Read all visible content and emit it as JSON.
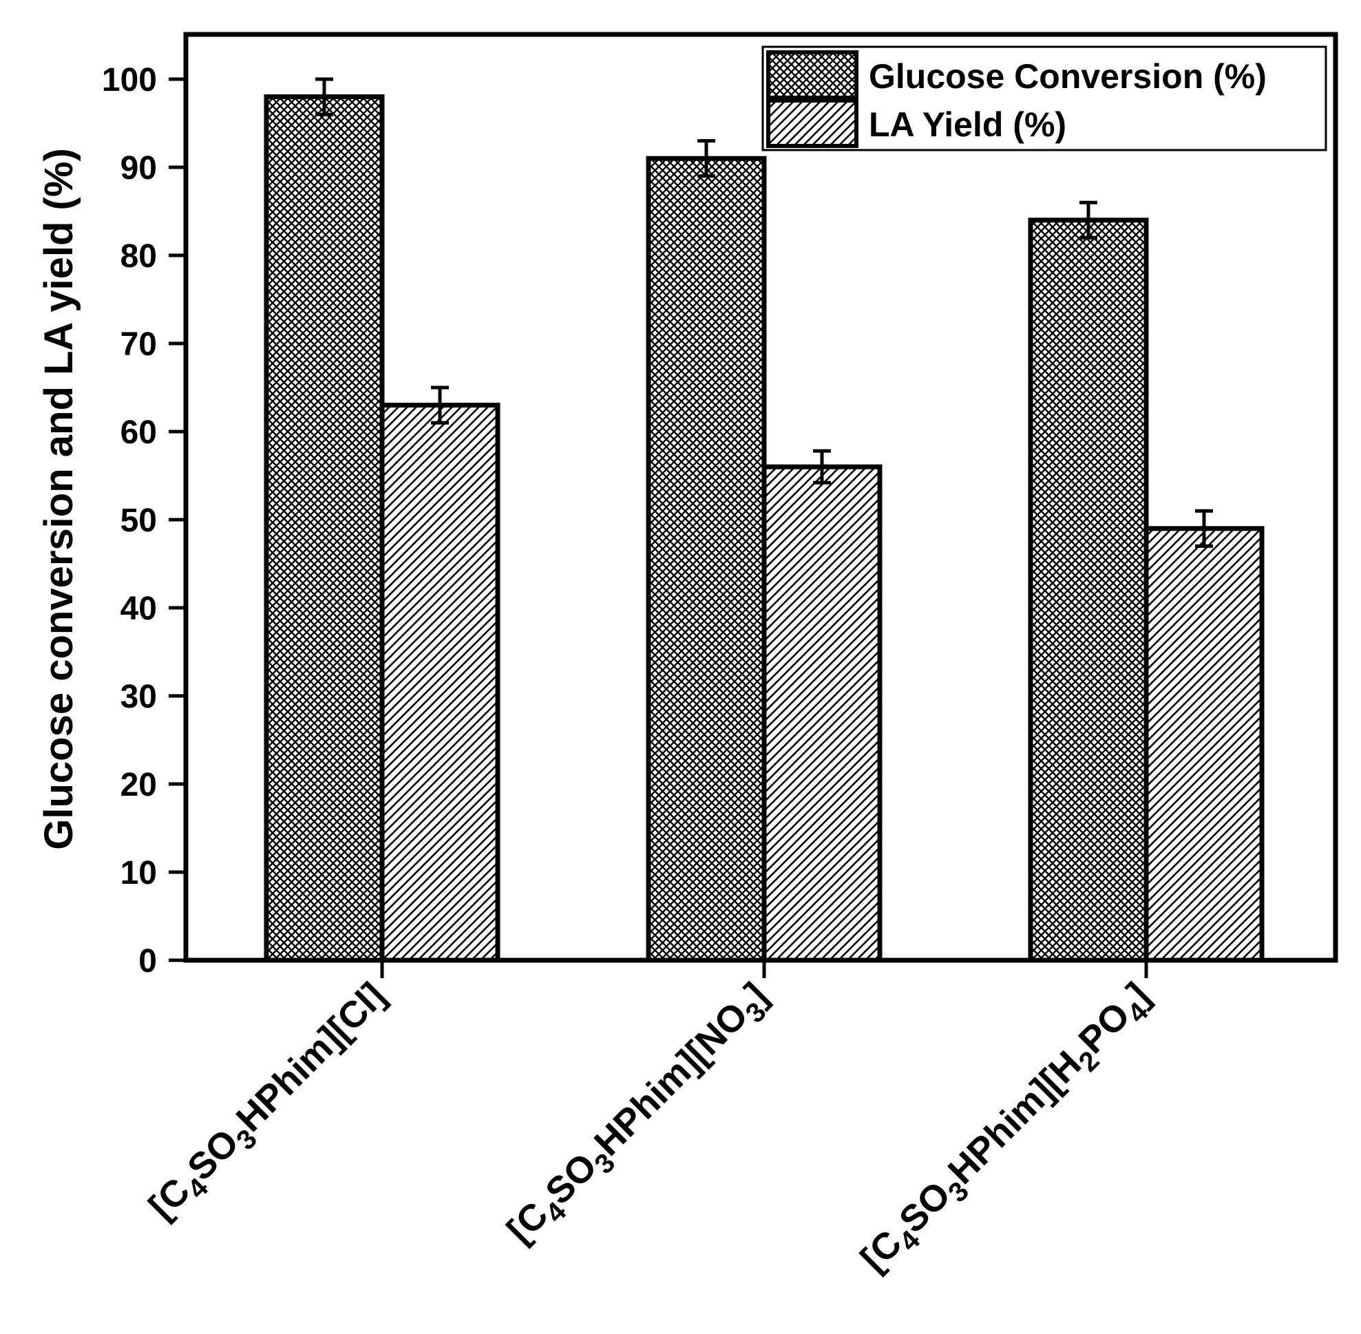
{
  "chart_data": {
    "type": "bar",
    "ylabel": "Glucose conversion and LA yield (%)",
    "xlabel": "",
    "ylim": [
      0,
      105
    ],
    "yticks": [
      "0",
      "10",
      "20",
      "30",
      "40",
      "50",
      "60",
      "70",
      "80",
      "90",
      "100"
    ],
    "categories": [
      {
        "main": "[C",
        "s1": "4",
        "m2": "SO",
        "s2": "3",
        "m3": "HPhim][Cl]"
      },
      {
        "main": "[C",
        "s1": "4",
        "m2": "SO",
        "s2": "3",
        "m3": "HPhim][NO",
        "s3": "3",
        "m4": "]"
      },
      {
        "main": "[C",
        "s1": "4",
        "m2": "SO",
        "s2": "3",
        "m3": "HPhim][H",
        "s3": "2",
        "m4": "PO",
        "s4": "4",
        "m5": "]"
      }
    ],
    "series": [
      {
        "name": "Glucose Conversion (%)",
        "pattern": "crosshatch",
        "values": [
          98,
          91,
          84
        ],
        "errors": [
          2,
          2,
          2
        ]
      },
      {
        "name": "LA Yield (%)",
        "pattern": "diagonal",
        "values": [
          63,
          56,
          49
        ],
        "errors": [
          2,
          1.8,
          2
        ]
      }
    ],
    "legend_position": "top-right",
    "grid": false
  }
}
